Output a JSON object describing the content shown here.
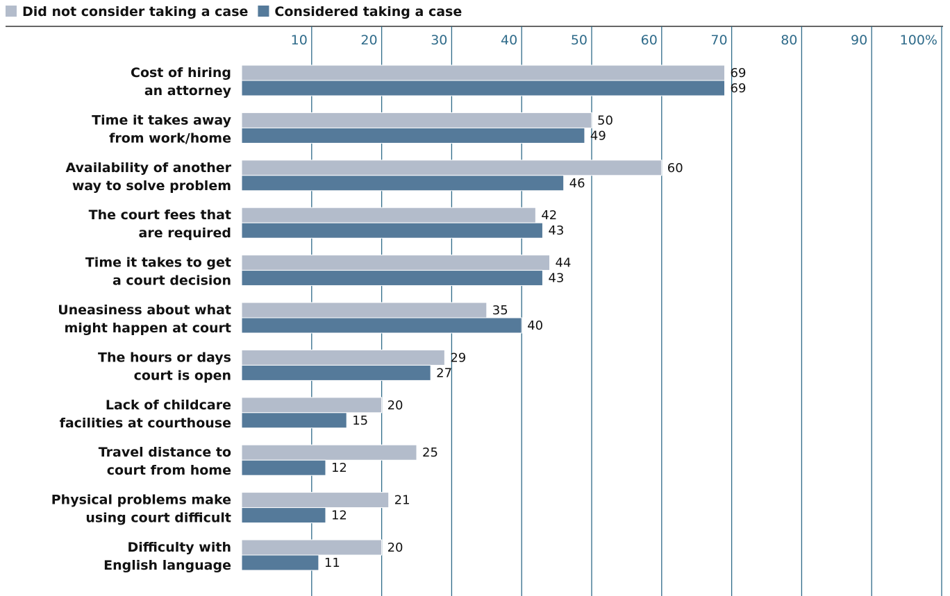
{
  "chart_data": {
    "type": "bar",
    "orientation": "horizontal",
    "legend_position": "top-left",
    "grid": true,
    "xlim": [
      0,
      100
    ],
    "ticks": [
      {
        "value": 10,
        "label": "10"
      },
      {
        "value": 20,
        "label": "20"
      },
      {
        "value": 30,
        "label": "30"
      },
      {
        "value": 40,
        "label": "40"
      },
      {
        "value": 50,
        "label": "50"
      },
      {
        "value": 60,
        "label": "60"
      },
      {
        "value": 70,
        "label": "70"
      },
      {
        "value": 80,
        "label": "80"
      },
      {
        "value": 90,
        "label": "90"
      },
      {
        "value": 100,
        "label": "100%"
      }
    ],
    "categories": [
      [
        "Cost of hiring",
        "an attorney"
      ],
      [
        "Time it takes away",
        "from work/home"
      ],
      [
        "Availability of another",
        "way to solve problem"
      ],
      [
        "The court fees that",
        "are required"
      ],
      [
        "Time it takes to get",
        "a court decision"
      ],
      [
        "Uneasiness about what",
        "might happen at court"
      ],
      [
        "The hours or days",
        "court is open"
      ],
      [
        "Lack of childcare",
        "facilities at courthouse"
      ],
      [
        "Travel distance to",
        "court from home"
      ],
      [
        "Physical problems make",
        "using court difficult"
      ],
      [
        "Difficulty with",
        "English language"
      ]
    ],
    "series": [
      {
        "name": "Did not consider taking a case",
        "color": "#b3bccb",
        "values": [
          69,
          50,
          60,
          42,
          44,
          35,
          29,
          20,
          25,
          21,
          20
        ]
      },
      {
        "name": "Considered taking a case",
        "color": "#557a9a",
        "values": [
          69,
          49,
          46,
          43,
          43,
          40,
          27,
          15,
          12,
          12,
          11
        ]
      }
    ]
  }
}
